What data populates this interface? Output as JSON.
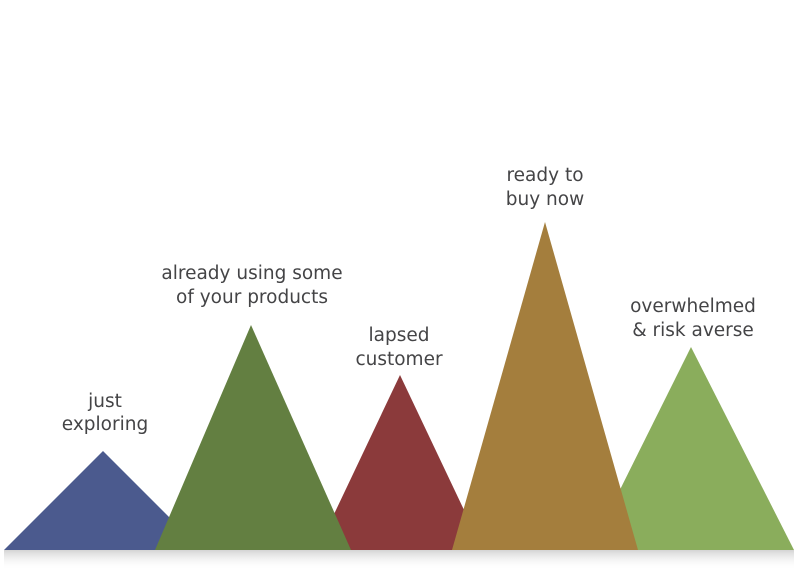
{
  "diagram": {
    "segments": [
      {
        "id": "just-exploring",
        "label_lines": [
          "just",
          "exploring"
        ],
        "color": "#4b5a8e"
      },
      {
        "id": "already-using",
        "label_lines": [
          "already using some",
          "of your products"
        ],
        "color": "#637f41"
      },
      {
        "id": "lapsed-customer",
        "label_lines": [
          "lapsed",
          "customer"
        ],
        "color": "#8b3a3b"
      },
      {
        "id": "ready-to-buy",
        "label_lines": [
          "ready to",
          "buy now"
        ],
        "color": "#a47e3d"
      },
      {
        "id": "overwhelmed",
        "label_lines": [
          "overwhelmed",
          "& risk averse"
        ],
        "color": "#8aad5c"
      }
    ],
    "ground_shadow_color": "#d9d9d9"
  }
}
